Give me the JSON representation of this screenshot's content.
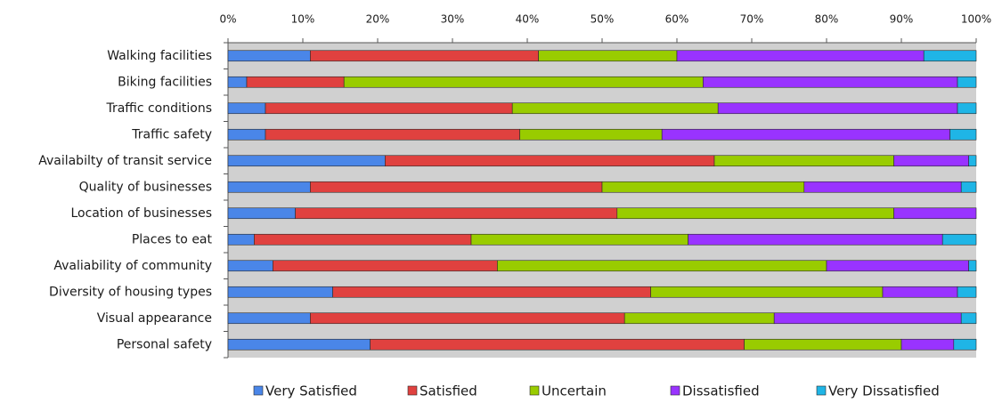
{
  "chart_data": {
    "type": "bar",
    "orientation": "horizontal",
    "stacked": "percent",
    "title": "",
    "xlabel": "",
    "ylabel": "",
    "xlim": [
      0,
      100
    ],
    "x_ticks": [
      "0%",
      "10%",
      "20%",
      "30%",
      "40%",
      "50%",
      "60%",
      "70%",
      "80%",
      "90%",
      "100%"
    ],
    "grid": false,
    "legend_position": "bottom",
    "categories": [
      "Walking facilities",
      "Biking facilities",
      "Traffic conditions",
      "Traffic safety",
      "Availabilty of transit service",
      "Quality of businesses",
      "Location of businesses",
      "Places to eat",
      "Avaliability of community",
      "Diversity of housing types",
      "Visual appearance",
      "Personal safety"
    ],
    "series": [
      {
        "name": "Very Satisfied",
        "color": "#4a86e8",
        "values": [
          11,
          2.5,
          5,
          5,
          21,
          11,
          9,
          3.5,
          6,
          14,
          11,
          19
        ]
      },
      {
        "name": "Satisfied",
        "color": "#e0413f",
        "values": [
          30.5,
          13,
          33,
          34,
          44,
          39,
          43,
          29,
          30,
          42.5,
          42,
          50
        ]
      },
      {
        "name": "Uncertain",
        "color": "#99cc00",
        "values": [
          18.5,
          48,
          27.5,
          19,
          24,
          27,
          37,
          29,
          44,
          31,
          20,
          21
        ]
      },
      {
        "name": "Dissatisfied",
        "color": "#9933ff",
        "values": [
          33,
          34,
          32,
          38.5,
          10,
          21,
          11,
          34,
          19,
          10,
          25,
          7
        ]
      },
      {
        "name": "Very Dissatisfied",
        "color": "#1fb5e6",
        "values": [
          7,
          2.5,
          2.5,
          3.5,
          1,
          2,
          0,
          4.5,
          1,
          2.5,
          2,
          3
        ]
      }
    ]
  }
}
